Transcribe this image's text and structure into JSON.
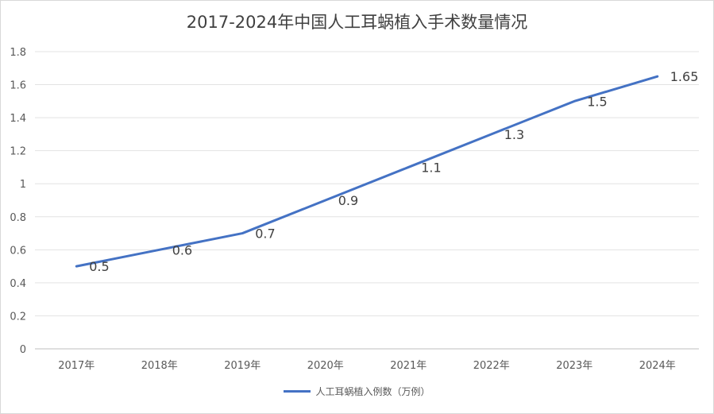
{
  "chart_data": {
    "type": "line",
    "title": "2017-2024年中国人工耳蜗植入手术数量情况",
    "categories": [
      "2017年",
      "2018年",
      "2019年",
      "2020年",
      "2021年",
      "2022年",
      "2023年",
      "2024年"
    ],
    "series": [
      {
        "name": "人工耳蜗植入例数（万例）",
        "values": [
          0.5,
          0.6,
          0.7,
          0.9,
          1.1,
          1.3,
          1.5,
          1.65
        ],
        "labels": [
          "0.5",
          "0.6",
          "0.7",
          "0.9",
          "1.1",
          "1.3",
          "1.5",
          "1.65"
        ],
        "color": "#4472c4"
      }
    ],
    "yticks": [
      "0",
      "0.2",
      "0.4",
      "0.6",
      "0.8",
      "1",
      "1.2",
      "1.4",
      "1.6",
      "1.8"
    ],
    "ylim": [
      0,
      1.8
    ],
    "grid": true,
    "legend_position": "bottom"
  }
}
